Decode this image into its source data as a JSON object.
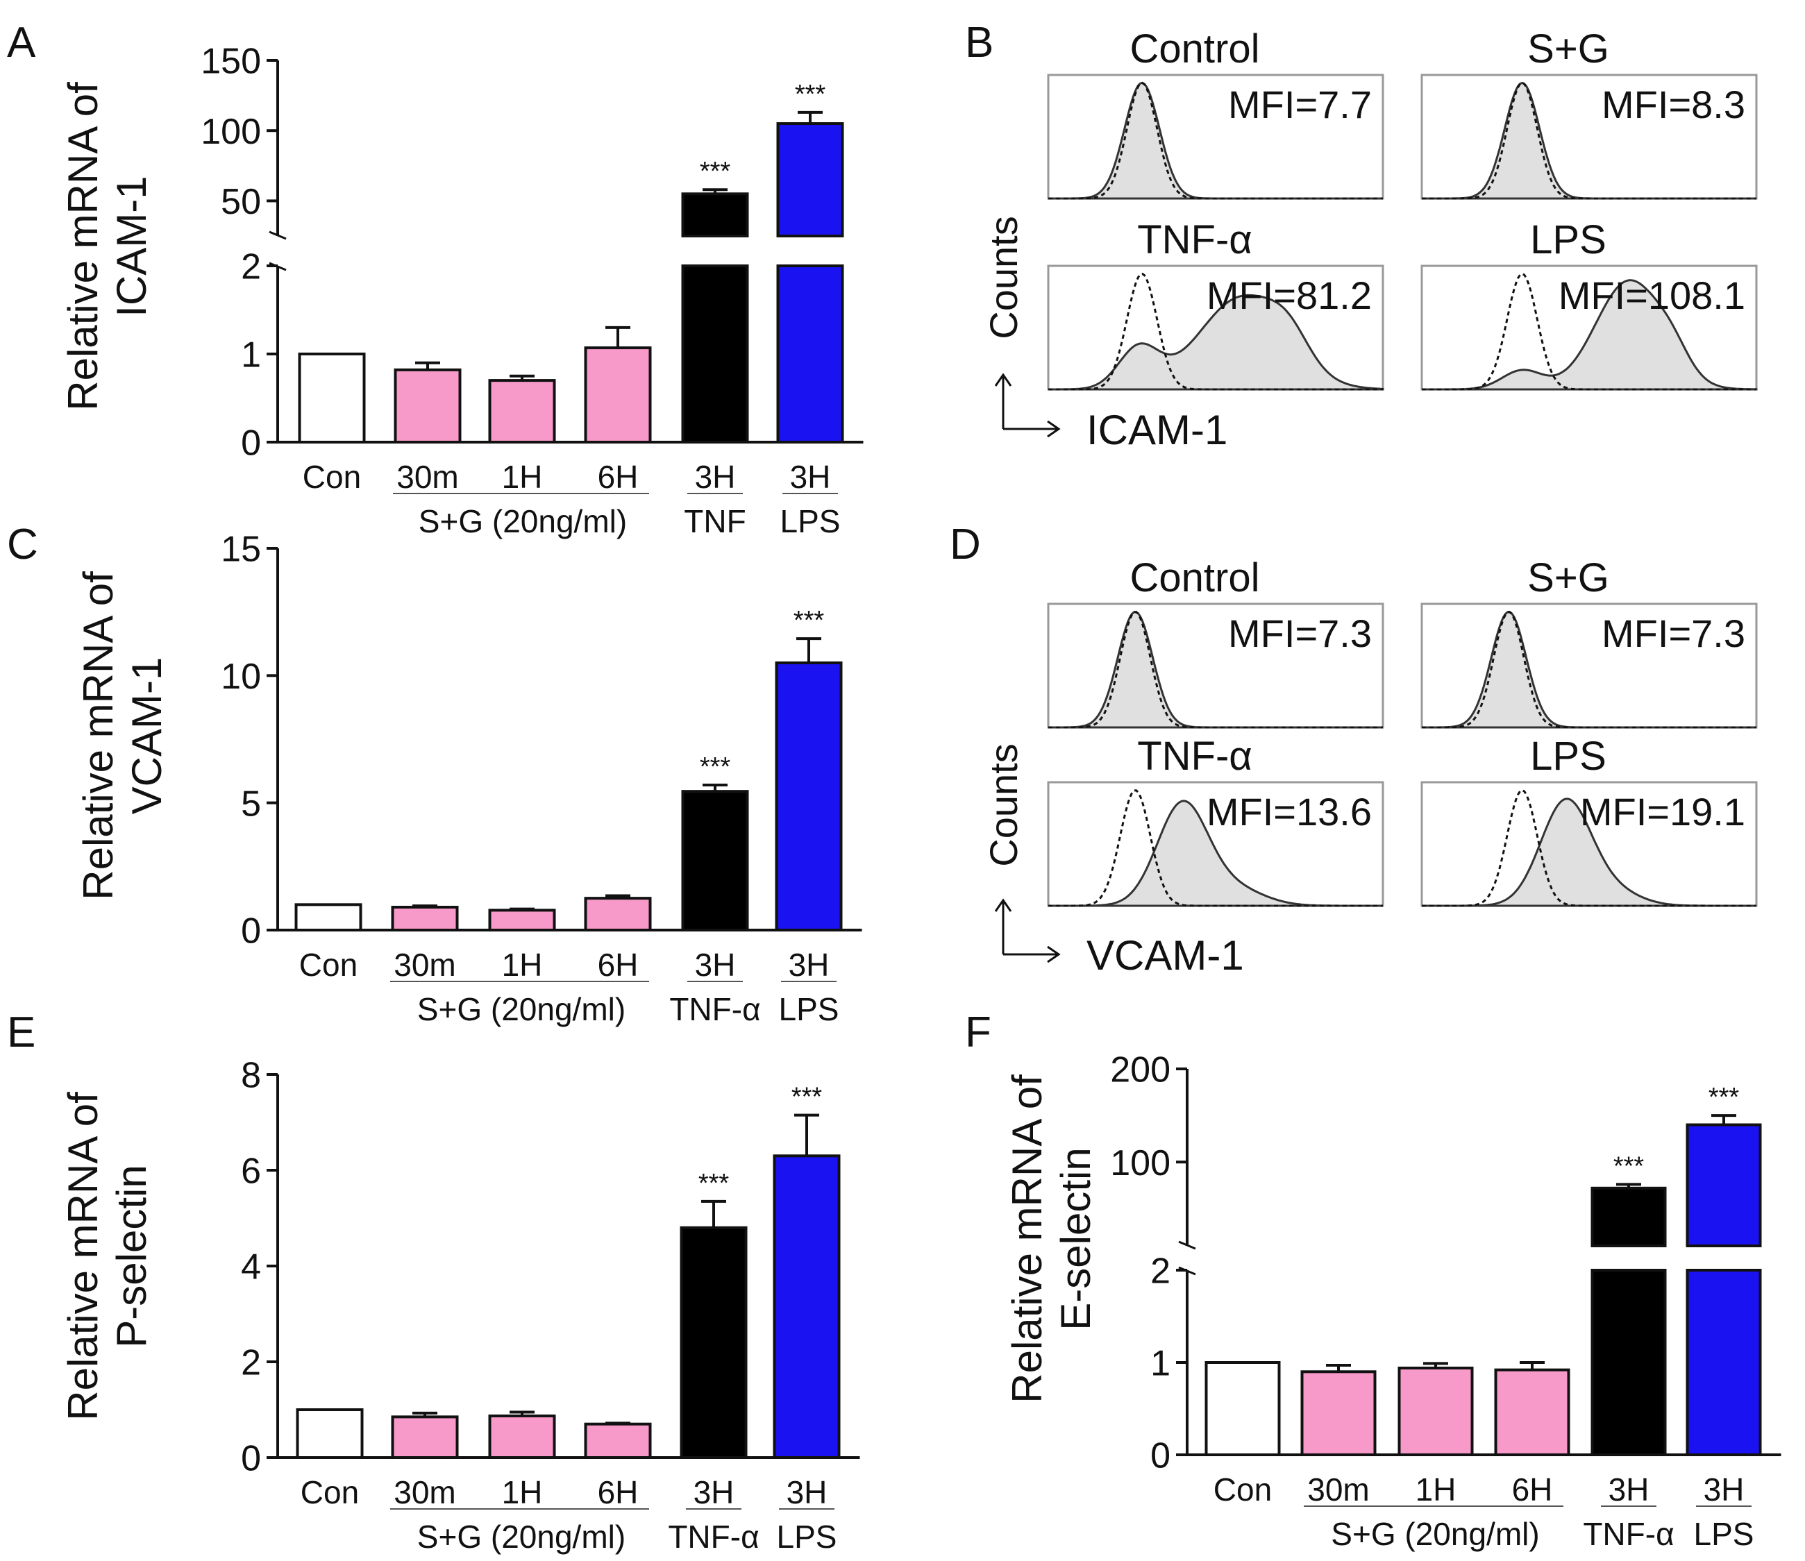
{
  "colors": {
    "control": "#ffffff",
    "sg": "#f799c9",
    "tnf": "#000000",
    "lps": "#1a12f0",
    "hist_fill": "#e0e0e0"
  },
  "chart_data": [
    {
      "panel": "A",
      "type": "bar",
      "ylabel_line1": "Relative mRNA of",
      "ylabel_line2": "ICAM-1",
      "categories": [
        "Con",
        "30m",
        "1H",
        "6H",
        "3H",
        "3H"
      ],
      "bar_colors": [
        "control",
        "sg",
        "sg",
        "sg",
        "tnf",
        "lps"
      ],
      "values": [
        1.0,
        0.82,
        0.7,
        1.07,
        55,
        105
      ],
      "errors": [
        0,
        0.08,
        0.05,
        0.23,
        3,
        8
      ],
      "stars": [
        "",
        "",
        "",
        "",
        "***",
        "***"
      ],
      "group_label": "S+G (20ng/ml)",
      "tnf_label": "TNF",
      "lps_label": "LPS",
      "broken_axis": true,
      "lower_range": [
        0,
        2
      ],
      "lower_ticks": [
        "0",
        "1",
        "2"
      ],
      "upper_range": [
        25,
        150
      ],
      "upper_ticks": [
        "50",
        "100",
        "150"
      ]
    },
    {
      "panel": "C",
      "type": "bar",
      "ylabel_line1": "Relative mRNA of",
      "ylabel_line2": "VCAM-1",
      "categories": [
        "Con",
        "30m",
        "1H",
        "6H",
        "3H",
        "3H"
      ],
      "bar_colors": [
        "control",
        "sg",
        "sg",
        "sg",
        "tnf",
        "lps"
      ],
      "values": [
        1.0,
        0.9,
        0.78,
        1.25,
        5.45,
        10.5
      ],
      "errors": [
        0,
        0.05,
        0.05,
        0.1,
        0.25,
        0.95
      ],
      "stars": [
        "",
        "",
        "",
        "",
        "***",
        "***"
      ],
      "group_label": "S+G (20ng/ml)",
      "tnf_label": "TNF-α",
      "lps_label": "LPS",
      "broken_axis": false,
      "ylim": [
        0,
        15
      ],
      "ticks": [
        "0",
        "5",
        "10",
        "15"
      ]
    },
    {
      "panel": "E",
      "type": "bar",
      "ylabel_line1": "Relative mRNA of",
      "ylabel_line2": "P-selectin",
      "categories": [
        "Con",
        "30m",
        "1H",
        "6H",
        "3H",
        "3H"
      ],
      "bar_colors": [
        "control",
        "sg",
        "sg",
        "sg",
        "tnf",
        "lps"
      ],
      "values": [
        1.0,
        0.85,
        0.87,
        0.7,
        4.8,
        6.3
      ],
      "errors": [
        0,
        0.08,
        0.08,
        0.02,
        0.55,
        0.85
      ],
      "stars": [
        "",
        "",
        "",
        "",
        "***",
        "***"
      ],
      "group_label": "S+G (20ng/ml)",
      "tnf_label": "TNF-α",
      "lps_label": "LPS",
      "broken_axis": false,
      "ylim": [
        0,
        8
      ],
      "ticks": [
        "0",
        "2",
        "4",
        "6",
        "8"
      ]
    },
    {
      "panel": "F",
      "type": "bar",
      "ylabel_line1": "Relative mRNA of",
      "ylabel_line2": "E-selectin",
      "categories": [
        "Con",
        "30m",
        "1H",
        "6H",
        "3H",
        "3H"
      ],
      "bar_colors": [
        "control",
        "sg",
        "sg",
        "sg",
        "tnf",
        "lps"
      ],
      "values": [
        1.0,
        0.9,
        0.94,
        0.92,
        72,
        140
      ],
      "errors": [
        0,
        0.07,
        0.05,
        0.08,
        4,
        10
      ],
      "stars": [
        "",
        "",
        "",
        "",
        "***",
        "***"
      ],
      "group_label": "S+G (20ng/ml)",
      "tnf_label": "TNF-α",
      "lps_label": "LPS",
      "broken_axis": true,
      "lower_range": [
        0,
        2
      ],
      "lower_ticks": [
        "0",
        "1",
        "2"
      ],
      "upper_range": [
        10,
        200
      ],
      "upper_ticks": [
        "100",
        "200"
      ]
    },
    {
      "panel": "B",
      "type": "histogram-grid",
      "ylabel": "Counts",
      "xlabel": "ICAM-1",
      "histograms": [
        {
          "title": "Control",
          "mfi": "MFI=7.7",
          "isotype_peak": 0.28,
          "sample_mode": "overlap"
        },
        {
          "title": "S+G",
          "mfi": "MFI=8.3",
          "isotype_peak": 0.3,
          "sample_mode": "overlap"
        },
        {
          "title": "TNF-α",
          "mfi": "MFI=81.2",
          "isotype_peak": 0.28,
          "sample_mode": "broad"
        },
        {
          "title": "LPS",
          "mfi": "MFI=108.1",
          "isotype_peak": 0.3,
          "sample_mode": "broad2"
        }
      ]
    },
    {
      "panel": "D",
      "type": "histogram-grid",
      "ylabel": "Counts",
      "xlabel": "VCAM-1",
      "histograms": [
        {
          "title": "Control",
          "mfi": "MFI=7.3",
          "isotype_peak": 0.26,
          "sample_mode": "overlap"
        },
        {
          "title": "S+G",
          "mfi": "MFI=7.3",
          "isotype_peak": 0.26,
          "sample_mode": "overlap"
        },
        {
          "title": "TNF-α",
          "mfi": "MFI=13.6",
          "isotype_peak": 0.26,
          "sample_mode": "shift"
        },
        {
          "title": "LPS",
          "mfi": "MFI=19.1",
          "isotype_peak": 0.3,
          "sample_mode": "shift2"
        }
      ]
    }
  ]
}
